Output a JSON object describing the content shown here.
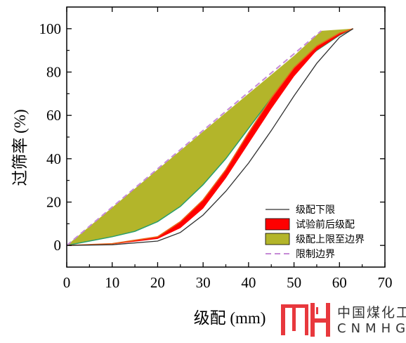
{
  "chart_data": {
    "type": "line",
    "title": "",
    "xlabel": "级配 (mm)",
    "ylabel": "过筛率 (%)",
    "xlim": [
      0,
      70
    ],
    "ylim": [
      -10,
      110
    ],
    "xticks": [
      0,
      10,
      20,
      30,
      40,
      50,
      60,
      70
    ],
    "yticks": [
      0,
      20,
      40,
      60,
      80,
      100
    ],
    "grid": false,
    "legend_position": "bottom-right",
    "legend": [
      {
        "label": "级配下限",
        "kind": "line",
        "color": "#303030"
      },
      {
        "label": "试验前后级配",
        "kind": "band",
        "color": "#ff0000"
      },
      {
        "label": "级配上限至边界",
        "kind": "band",
        "color": "#b3b52a"
      },
      {
        "label": "限制边界",
        "kind": "dashed-line",
        "color": "#c58ad6"
      }
    ],
    "series": [
      {
        "name": "级配下限",
        "role": "line",
        "color": "#303030",
        "x": [
          0,
          10,
          20,
          25,
          30,
          35,
          40,
          45,
          50,
          55,
          60,
          63
        ],
        "y": [
          0,
          0.3,
          2,
          6,
          14,
          25,
          38,
          53,
          69,
          84,
          96,
          100
        ]
      },
      {
        "name": "试验前后级配",
        "role": "band",
        "fill": "#ff0000",
        "edge": "#e8661c",
        "x": [
          0,
          10,
          20,
          25,
          30,
          35,
          40,
          45,
          50,
          55,
          60,
          63
        ],
        "upper": [
          0,
          0.8,
          4,
          11,
          21,
          35,
          52,
          68,
          82,
          92,
          98,
          100
        ],
        "lower": [
          0,
          0.5,
          3,
          8,
          17,
          31,
          47,
          63,
          78,
          90,
          97,
          100
        ]
      },
      {
        "name": "级配上限至边界",
        "role": "band",
        "fill": "#b3b52a",
        "edge": "#2a9e6a",
        "x_upper": [
          0,
          10,
          20,
          30,
          40,
          50,
          56
        ],
        "upper": [
          0,
          17.5,
          35,
          52.5,
          70,
          87.5,
          99
        ],
        "x_lower": [
          0,
          5,
          10,
          15,
          20,
          25,
          30,
          35,
          40,
          45,
          50,
          55,
          60,
          63
        ],
        "lower": [
          0,
          2,
          4,
          6.5,
          11,
          18,
          28,
          40,
          54,
          68,
          81,
          90,
          97,
          100
        ]
      },
      {
        "name": "限制边界",
        "role": "dashed-line",
        "color": "#c58ad6",
        "x": [
          0,
          56
        ],
        "y": [
          0,
          99
        ]
      }
    ]
  },
  "branding": {
    "logo_mark": "MH logo",
    "logo_cn": "中国煤化工",
    "logo_en": "CNMHG",
    "logo_color": "#e8383d"
  }
}
